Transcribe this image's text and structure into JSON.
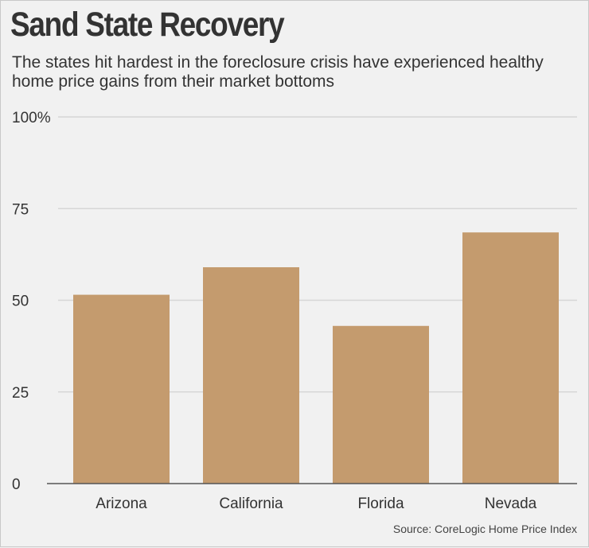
{
  "header": {
    "title": "Sand State Recovery",
    "subtitle": "The states hit hardest in the foreclosure crisis have experienced healthy home price gains from their market bottoms"
  },
  "footer": {
    "source": "Source: CoreLogic Home Price Index"
  },
  "colors": {
    "bar": "#c49b6e",
    "grid": "#d6d6d6",
    "axis": "#555555",
    "text": "#333333"
  },
  "chart_data": {
    "type": "bar",
    "title": "Sand State Recovery",
    "categories": [
      "Arizona",
      "California",
      "Florida",
      "Nevada"
    ],
    "values": [
      51.5,
      59,
      43,
      68.5
    ],
    "ytick_labels": [
      "0",
      "25",
      "50",
      "75",
      "100%"
    ],
    "yticks": [
      0,
      25,
      50,
      75,
      100
    ],
    "ylim": [
      0,
      100
    ],
    "xlabel": "",
    "ylabel": "",
    "grid": true,
    "legend": "none"
  }
}
